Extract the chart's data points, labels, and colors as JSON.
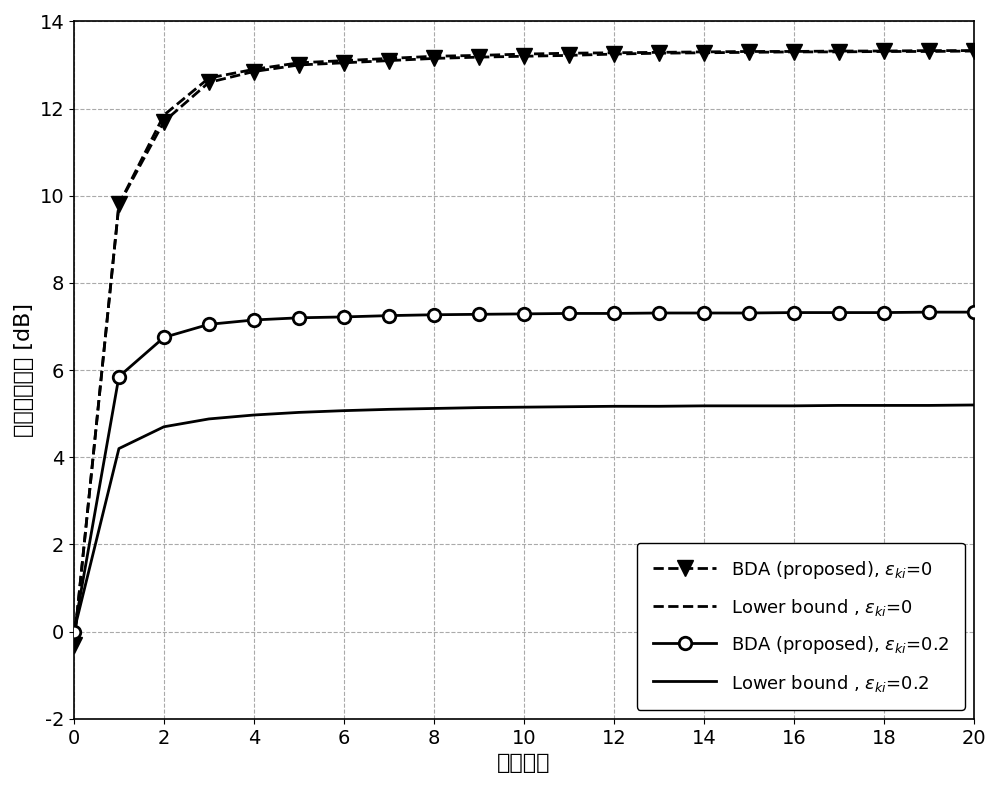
{
  "title": "",
  "xlabel": "迭代次数",
  "ylabel": "最小信干噪比 [dB]",
  "xlim": [
    0,
    20
  ],
  "ylim": [
    -2,
    14
  ],
  "xticks": [
    0,
    2,
    4,
    6,
    8,
    10,
    12,
    14,
    16,
    18,
    20
  ],
  "yticks": [
    -2,
    0,
    2,
    4,
    6,
    8,
    10,
    12,
    14
  ],
  "iterations": [
    0,
    1,
    2,
    3,
    4,
    5,
    6,
    7,
    8,
    9,
    10,
    11,
    12,
    13,
    14,
    15,
    16,
    17,
    18,
    19,
    20
  ],
  "bda_eps0": [
    -0.3,
    9.8,
    11.7,
    12.6,
    12.85,
    13.0,
    13.05,
    13.1,
    13.15,
    13.18,
    13.2,
    13.22,
    13.25,
    13.27,
    13.28,
    13.29,
    13.3,
    13.3,
    13.31,
    13.31,
    13.32
  ],
  "lb_eps0": [
    -0.3,
    9.8,
    11.85,
    12.7,
    12.9,
    13.05,
    13.1,
    13.15,
    13.2,
    13.22,
    13.25,
    13.27,
    13.28,
    13.29,
    13.3,
    13.31,
    13.31,
    13.32,
    13.32,
    13.33,
    13.33
  ],
  "bda_eps02": [
    0.0,
    5.85,
    6.75,
    7.05,
    7.15,
    7.2,
    7.22,
    7.25,
    7.27,
    7.28,
    7.29,
    7.3,
    7.3,
    7.31,
    7.31,
    7.31,
    7.32,
    7.32,
    7.32,
    7.33,
    7.33
  ],
  "lb_eps02": [
    0.0,
    4.2,
    4.7,
    4.88,
    4.97,
    5.03,
    5.07,
    5.1,
    5.12,
    5.14,
    5.15,
    5.16,
    5.17,
    5.17,
    5.18,
    5.18,
    5.18,
    5.19,
    5.19,
    5.19,
    5.2
  ],
  "legend_label_0": "BDA (proposed), ε",
  "legend_label_0_sub": "ki",
  "legend_label_0_val": "=0",
  "legend_label_1": "Lower bound , ε",
  "legend_label_1_sub": "ki",
  "legend_label_1_val": "=0",
  "legend_label_2": "BDA (proposed), ε",
  "legend_label_2_sub": "ki",
  "legend_label_2_val": "=0.2",
  "legend_label_3": "Lower bound , ε",
  "legend_label_3_sub": "ki",
  "legend_label_3_val": "=0.2",
  "tick_font_size": 14,
  "label_font_size": 16,
  "legend_font_size": 13,
  "figure_width": 10.0,
  "figure_height": 7.87,
  "dpi": 100,
  "background_color": "#ffffff",
  "line_color": "#000000",
  "grid_color": "#aaaaaa",
  "grid_linestyle": "--"
}
